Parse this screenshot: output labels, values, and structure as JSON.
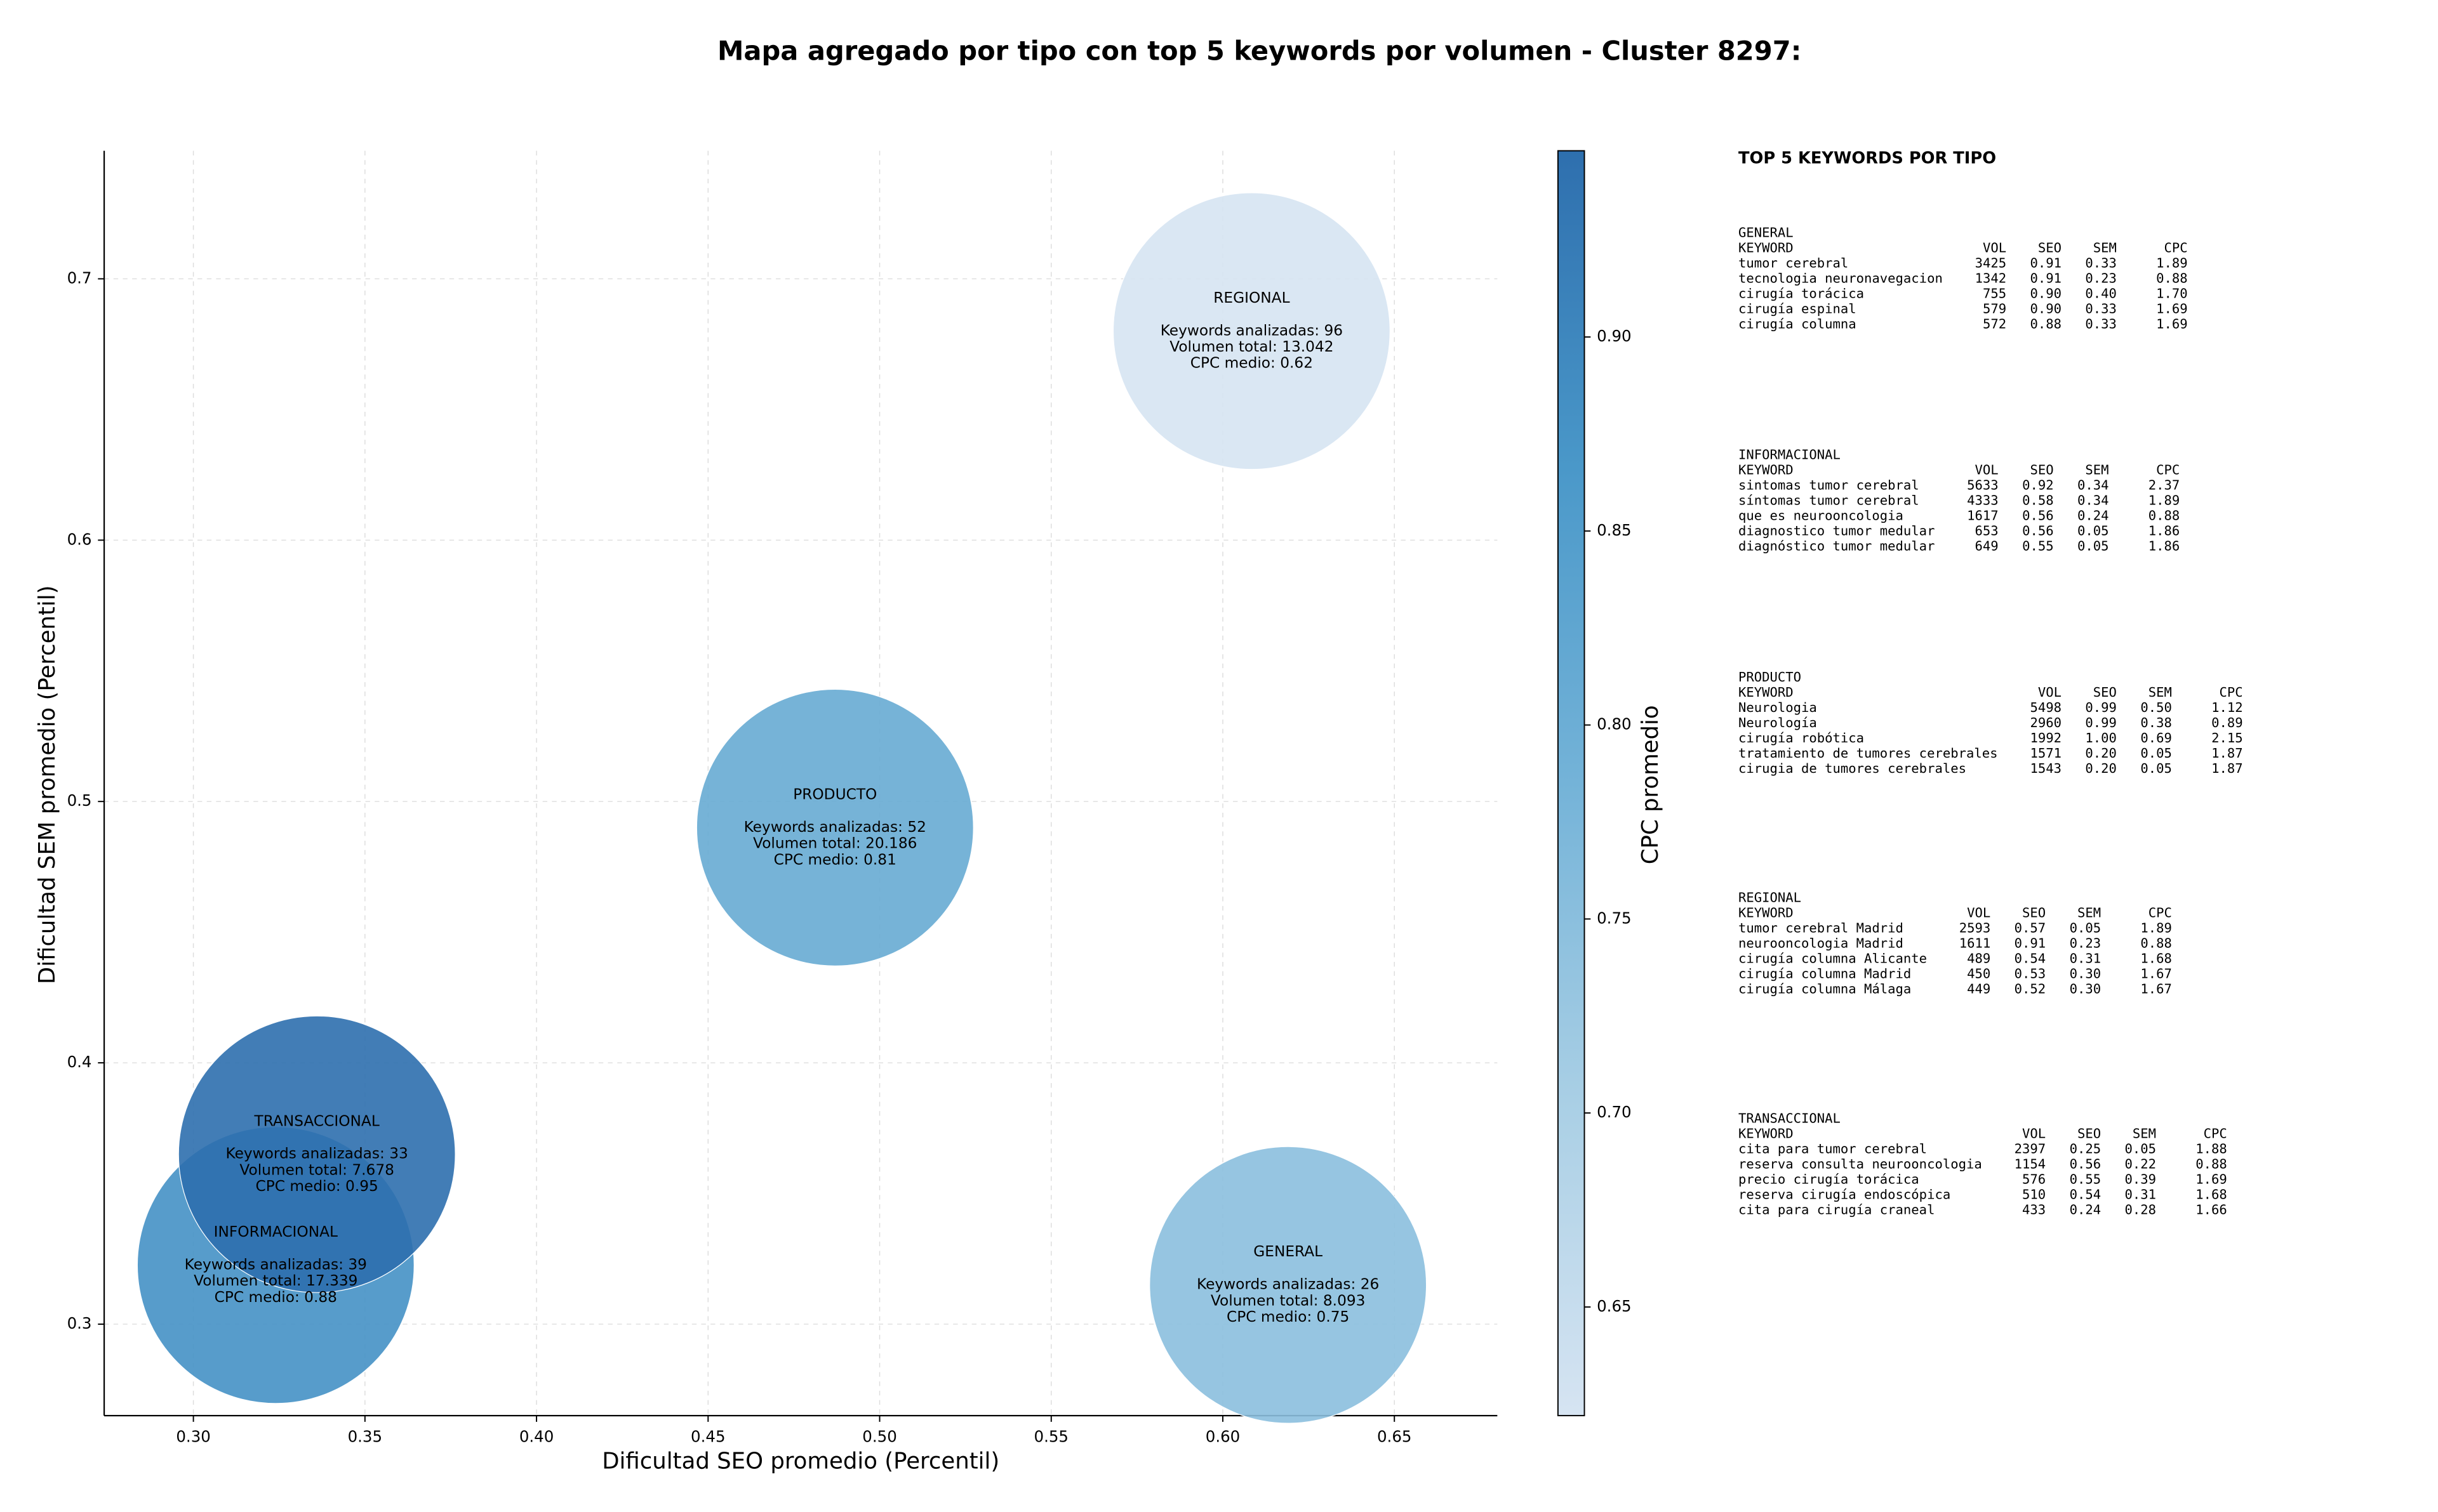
{
  "chart_data": {
    "type": "scatter",
    "title": "Mapa agregado por tipo con top 5 keywords por volumen - Cluster 8297:",
    "x_label": "Dificultad SEO promedio (Percentil)",
    "y_label": "Dificultad SEM promedio (Percentil)",
    "xlim": [
      0.274,
      0.68
    ],
    "ylim": [
      0.265,
      0.749
    ],
    "xticks": [
      {
        "value": 0.3,
        "label": "0.30"
      },
      {
        "value": 0.35,
        "label": "0.35"
      },
      {
        "value": 0.4,
        "label": "0.40"
      },
      {
        "value": 0.45,
        "label": "0.45"
      },
      {
        "value": 0.5,
        "label": "0.50"
      },
      {
        "value": 0.55,
        "label": "0.55"
      },
      {
        "value": 0.6,
        "label": "0.60"
      },
      {
        "value": 0.65,
        "label": "0.65"
      }
    ],
    "yticks": [
      0.3,
      0.4,
      0.5,
      0.6,
      0.7
    ],
    "grid": true,
    "colorbar": {
      "label": "CPC promedio",
      "lim": [
        0.622,
        0.948
      ],
      "ticks": [
        {
          "value": 0.65,
          "label": "0.65"
        },
        {
          "value": 0.7,
          "label": "0.70"
        },
        {
          "value": 0.75,
          "label": "0.75"
        },
        {
          "value": 0.8,
          "label": "0.80"
        },
        {
          "value": 0.85,
          "label": "0.85"
        },
        {
          "value": 0.9,
          "label": "0.90"
        }
      ],
      "colors": [
        "#d6e4f2",
        "#a9cfe5",
        "#74b3d8",
        "#4a98c9",
        "#2e6fae"
      ]
    },
    "points": [
      {
        "name": "GENERAL",
        "x": 0.619,
        "y": 0.315,
        "cpc": 0.75,
        "lines": [
          "Keywords analizadas: 26",
          "Volumen total: 8.093",
          "CPC medio: 0.75"
        ]
      },
      {
        "name": "INFORMACIONAL",
        "x": 0.324,
        "y": 0.3226,
        "cpc": 0.88,
        "lines": [
          "Keywords analizadas: 39",
          "Volumen total: 17.339",
          "CPC medio: 0.88"
        ]
      },
      {
        "name": "PRODUCTO",
        "x": 0.487,
        "y": 0.49,
        "cpc": 0.81,
        "lines": [
          "Keywords analizadas: 52",
          "Volumen total: 20.186",
          "CPC medio: 0.81"
        ]
      },
      {
        "name": "REGIONAL",
        "x": 0.6084,
        "y": 0.68,
        "cpc": 0.62,
        "lines": [
          "Keywords analizadas: 96",
          "Volumen total: 13.042",
          "CPC medio: 0.62"
        ]
      },
      {
        "name": "TRANSACCIONAL",
        "x": 0.336,
        "y": 0.365,
        "cpc": 0.95,
        "lines": [
          "Keywords analizadas: 33",
          "Volumen total: 7.678",
          "CPC medio: 0.95"
        ]
      }
    ]
  },
  "panel": {
    "title": "TOP 5 KEYWORDS POR TIPO",
    "sections": [
      {
        "title": "GENERAL",
        "header": [
          "KEYWORD",
          "VOL",
          "SEO",
          "SEM",
          "CPC"
        ],
        "rows": [
          [
            "tumor cerebral",
            "3425",
            "0.91",
            "0.33",
            "1.89"
          ],
          [
            "tecnologia neuronavegacion",
            "1342",
            "0.91",
            "0.23",
            "0.88"
          ],
          [
            "cirugía torácica",
            "755",
            "0.90",
            "0.40",
            "1.70"
          ],
          [
            "cirugía espinal",
            "579",
            "0.90",
            "0.33",
            "1.69"
          ],
          [
            "cirugía columna",
            "572",
            "0.88",
            "0.33",
            "1.69"
          ]
        ]
      },
      {
        "title": "INFORMACIONAL",
        "header": [
          "KEYWORD",
          "VOL",
          "SEO",
          "SEM",
          "CPC"
        ],
        "rows": [
          [
            "sintomas tumor cerebral",
            "5633",
            "0.92",
            "0.34",
            "2.37"
          ],
          [
            "síntomas tumor cerebral",
            "4333",
            "0.58",
            "0.34",
            "1.89"
          ],
          [
            "que es neurooncologia",
            "1617",
            "0.56",
            "0.24",
            "0.88"
          ],
          [
            "diagnostico tumor medular",
            "653",
            "0.56",
            "0.05",
            "1.86"
          ],
          [
            "diagnóstico tumor medular",
            "649",
            "0.55",
            "0.05",
            "1.86"
          ]
        ]
      },
      {
        "title": "PRODUCTO",
        "header": [
          "KEYWORD",
          "VOL",
          "SEO",
          "SEM",
          "CPC"
        ],
        "rows": [
          [
            "Neurologia",
            "5498",
            "0.99",
            "0.50",
            "1.12"
          ],
          [
            "Neurología",
            "2960",
            "0.99",
            "0.38",
            "0.89"
          ],
          [
            "cirugía robótica",
            "1992",
            "1.00",
            "0.69",
            "2.15"
          ],
          [
            "tratamiento de tumores cerebrales",
            "1571",
            "0.20",
            "0.05",
            "1.87"
          ],
          [
            "cirugia de tumores cerebrales",
            "1543",
            "0.20",
            "0.05",
            "1.87"
          ]
        ]
      },
      {
        "title": "REGIONAL",
        "header": [
          "KEYWORD",
          "VOL",
          "SEO",
          "SEM",
          "CPC"
        ],
        "rows": [
          [
            "tumor cerebral Madrid",
            "2593",
            "0.57",
            "0.05",
            "1.89"
          ],
          [
            "neurooncologia Madrid",
            "1611",
            "0.91",
            "0.23",
            "0.88"
          ],
          [
            "cirugía columna Alicante",
            "489",
            "0.54",
            "0.31",
            "1.68"
          ],
          [
            "cirugía columna Madrid",
            "450",
            "0.53",
            "0.30",
            "1.67"
          ],
          [
            "cirugía columna Málaga",
            "449",
            "0.52",
            "0.30",
            "1.67"
          ]
        ]
      },
      {
        "title": "TRANSACCIONAL",
        "header": [
          "KEYWORD",
          "VOL",
          "SEO",
          "SEM",
          "CPC"
        ],
        "rows": [
          [
            "cita para tumor cerebral",
            "2397",
            "0.25",
            "0.05",
            "1.88"
          ],
          [
            "reserva consulta neurooncologia",
            "1154",
            "0.56",
            "0.22",
            "0.88"
          ],
          [
            "precio cirugía torácica",
            "576",
            "0.55",
            "0.39",
            "1.69"
          ],
          [
            "reserva cirugía endoscópica",
            "510",
            "0.54",
            "0.31",
            "1.68"
          ],
          [
            "cita para cirugía craneal",
            "433",
            "0.24",
            "0.28",
            "1.66"
          ]
        ]
      }
    ]
  }
}
